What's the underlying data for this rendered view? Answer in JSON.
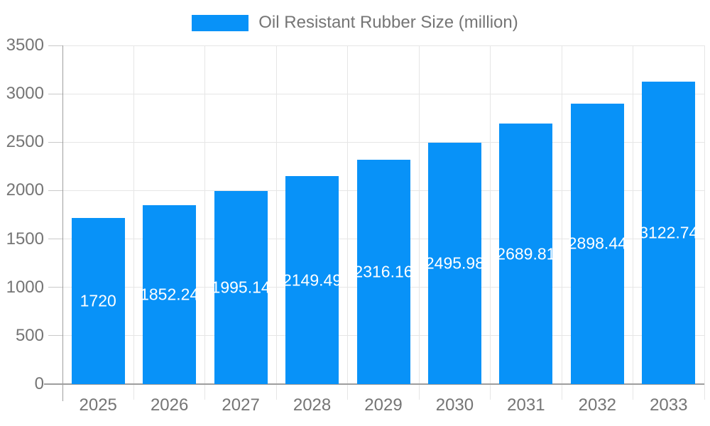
{
  "chart_data": {
    "type": "bar",
    "title": "Oil Resistant Rubber Size (million)",
    "legend": {
      "label": "Oil Resistant Rubber Size (million)",
      "position": "top-center"
    },
    "categories": [
      "2025",
      "2026",
      "2027",
      "2028",
      "2029",
      "2030",
      "2031",
      "2032",
      "2033"
    ],
    "series": [
      {
        "name": "Oil Resistant Rubber Size (million)",
        "values": [
          1720,
          1852.24,
          1995.14,
          2149.49,
          2316.16,
          2495.98,
          2689.81,
          2898.44,
          3122.74
        ],
        "labels": [
          "1720",
          "1852.24",
          "1995.14",
          "2149.49",
          "2316.16",
          "2495.98",
          "2689.81",
          "2898.44",
          "3122.74"
        ]
      }
    ],
    "xlabel": "",
    "ylabel": "",
    "ylim": [
      0,
      3500
    ],
    "yticks": [
      0,
      500,
      1000,
      1500,
      2000,
      2500,
      3000,
      3500
    ],
    "grid": true,
    "colors": {
      "bar": "#0892f8",
      "axis_text": "#757575",
      "grid_line": "#e6e6e6",
      "axis_line": "#9e9e9e",
      "value_label": "#ffffff",
      "background": "#ffffff"
    }
  }
}
